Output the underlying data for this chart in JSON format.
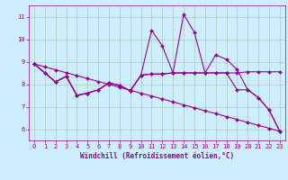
{
  "xlabel": "Windchill (Refroidissement éolien,°C)",
  "bg_color": "#cceeff",
  "line_color": "#990099",
  "grid_color": "#aaccbb",
  "xlim": [
    -0.5,
    23.5
  ],
  "ylim": [
    5.5,
    11.5
  ],
  "yticks": [
    6,
    7,
    8,
    9,
    10,
    11
  ],
  "xticks": [
    0,
    1,
    2,
    3,
    4,
    5,
    6,
    7,
    8,
    9,
    10,
    11,
    12,
    13,
    14,
    15,
    16,
    17,
    18,
    19,
    20,
    21,
    22,
    23
  ],
  "line_spiky_x": [
    0,
    1,
    2,
    3,
    4,
    5,
    6,
    7,
    8,
    9,
    10,
    11,
    12,
    13,
    14,
    15,
    16,
    17,
    18,
    19,
    20,
    21,
    22,
    23
  ],
  "line_spiky_y": [
    8.9,
    8.5,
    8.1,
    8.35,
    7.5,
    7.6,
    7.75,
    8.05,
    7.95,
    7.7,
    8.4,
    10.4,
    9.7,
    8.5,
    11.1,
    10.3,
    8.5,
    9.3,
    9.1,
    8.65,
    7.75,
    7.4,
    6.85,
    5.9
  ],
  "line_flat_x": [
    0,
    1,
    2,
    3,
    4,
    5,
    6,
    7,
    8,
    9,
    10,
    11,
    12,
    13,
    14,
    15,
    16,
    17,
    18,
    19,
    20,
    21,
    22,
    23
  ],
  "line_flat_y": [
    8.9,
    8.5,
    8.1,
    8.35,
    7.5,
    7.6,
    7.75,
    8.05,
    7.95,
    7.7,
    8.4,
    8.45,
    8.45,
    8.5,
    8.5,
    8.5,
    8.5,
    8.5,
    8.5,
    8.5,
    8.55,
    8.55,
    8.55,
    8.55
  ],
  "line_mid_x": [
    0,
    1,
    2,
    3,
    4,
    5,
    6,
    7,
    8,
    9,
    10,
    11,
    12,
    13,
    14,
    15,
    16,
    17,
    18,
    19,
    20,
    21,
    22,
    23
  ],
  "line_mid_y": [
    8.9,
    8.5,
    8.1,
    8.35,
    7.5,
    7.6,
    7.75,
    8.05,
    7.95,
    7.7,
    8.4,
    8.45,
    8.45,
    8.5,
    8.5,
    8.5,
    8.5,
    8.5,
    8.5,
    7.75,
    7.75,
    7.4,
    6.85,
    5.9
  ],
  "line_diag_x": [
    0,
    1,
    2,
    3,
    4,
    5,
    6,
    7,
    8,
    9,
    10,
    11,
    12,
    13,
    14,
    15,
    16,
    17,
    18,
    19,
    20,
    21,
    22,
    23
  ],
  "line_diag_y": [
    8.9,
    8.77,
    8.64,
    8.51,
    8.38,
    8.25,
    8.12,
    7.99,
    7.86,
    7.73,
    7.6,
    7.47,
    7.34,
    7.21,
    7.08,
    6.95,
    6.82,
    6.69,
    6.56,
    6.43,
    6.3,
    6.17,
    6.04,
    5.9
  ],
  "marker": "D",
  "markersize": 2.0,
  "linewidth": 0.8,
  "xlabel_fontsize": 5.5,
  "tick_fontsize": 5.0
}
